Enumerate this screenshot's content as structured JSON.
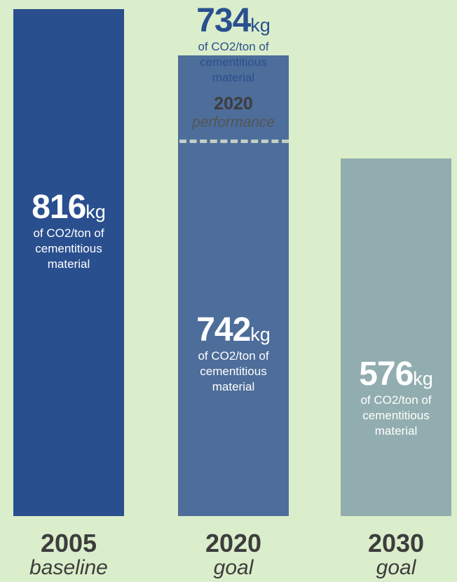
{
  "chart_data": {
    "type": "bar",
    "categories": [
      "2005",
      "2020",
      "2030"
    ],
    "category_subtitles": [
      "baseline",
      "goal",
      "goal"
    ],
    "values": [
      816,
      742,
      576
    ],
    "value_unit": "kg",
    "value_description": "of CO2/ton of cementitious material",
    "colors": [
      "#2a4f8f",
      "#4d6d9a",
      "#92adb0"
    ],
    "ylim": [
      0,
      816
    ],
    "grid": false,
    "legend": "none",
    "annotation": {
      "value": 734,
      "unit": "kg",
      "description": "of CO2/ton of cementitious material",
      "year": "2020",
      "label": "performance",
      "line_style": "dashed",
      "line_color": "#c3cfc3"
    }
  },
  "labels": {
    "bars": [
      {
        "value": "816",
        "unit": "kg",
        "desc1": "of CO2/ton of",
        "desc2": "cementitious",
        "desc3": "material"
      },
      {
        "value": "742",
        "unit": "kg",
        "desc1": "of CO2/ton of",
        "desc2": "cementitious",
        "desc3": "material"
      },
      {
        "value": "576",
        "unit": "kg",
        "desc1": "of CO2/ton of",
        "desc2": "cementitious",
        "desc3": "material"
      }
    ],
    "performance": {
      "value": "734",
      "unit": "kg",
      "desc1": "of CO2/ton of",
      "desc2": "cementitious",
      "desc3": "material",
      "year": "2020",
      "label": "performance"
    }
  }
}
